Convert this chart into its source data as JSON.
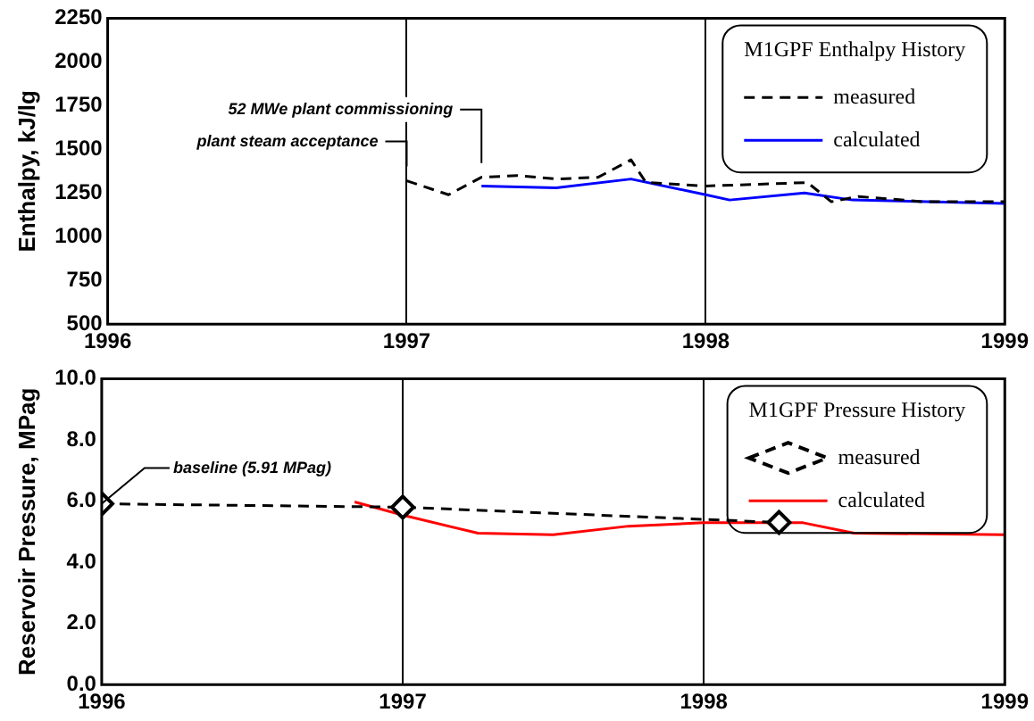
{
  "chart_data": [
    {
      "type": "line",
      "ylabel": "Enthalpy, kJ/lg",
      "legend_title": "M1GPF Enthalpy History",
      "legend": "top right",
      "grid": "x",
      "xlim": [
        1996,
        1999
      ],
      "xticks": [
        1996,
        1997,
        1998,
        1999
      ],
      "ylim": [
        500,
        2250
      ],
      "yticks": [
        500,
        750,
        1000,
        1250,
        1500,
        1750,
        2000,
        2250
      ],
      "series": [
        {
          "name": "measured",
          "color": "#000000",
          "line_style": "dashed",
          "marker": "none",
          "x": [
            1997.0,
            1997.14,
            1997.25,
            1997.37,
            1997.5,
            1997.64,
            1997.75,
            1997.8,
            1998.0,
            1998.18,
            1998.34,
            1998.42,
            1998.51,
            1998.73,
            1999.0
          ],
          "values": [
            1320,
            1240,
            1340,
            1350,
            1330,
            1340,
            1440,
            1310,
            1290,
            1300,
            1310,
            1200,
            1230,
            1200,
            1200
          ]
        },
        {
          "name": "calculated",
          "color": "#0000ff",
          "line_style": "solid",
          "marker": "none",
          "x": [
            1997.25,
            1997.5,
            1997.75,
            1998.0,
            1998.08,
            1998.33,
            1998.49,
            1999.0
          ],
          "values": [
            1290,
            1280,
            1330,
            1240,
            1210,
            1250,
            1210,
            1190
          ]
        }
      ],
      "annotations": [
        {
          "text": "52 MWe plant commissioning",
          "x": 1997.25,
          "y": 1340
        },
        {
          "text": "plant steam acceptance",
          "x": 1997.0,
          "y": 1320
        }
      ]
    },
    {
      "type": "line",
      "ylabel": "Reservoir Pressure, MPag",
      "legend_title": "M1GPF Pressure History",
      "legend": "top right",
      "grid": "x",
      "xlim": [
        1996,
        1999
      ],
      "xticks": [
        1996,
        1997,
        1998,
        1999
      ],
      "ylim": [
        0,
        10
      ],
      "yticks": [
        {
          "value": 0,
          "label": "0.0"
        },
        {
          "value": 2,
          "label": "2.0"
        },
        {
          "value": 4,
          "label": "4.0"
        },
        {
          "value": 6,
          "label": "6.0"
        },
        {
          "value": 8,
          "label": "8.0"
        },
        {
          "value": 10,
          "label": "10.0"
        }
      ],
      "series": [
        {
          "name": "measured",
          "color": "#000000",
          "line_style": "dashed",
          "marker": "diamond",
          "x": [
            1996.0,
            1997.0,
            1998.25
          ],
          "values": [
            5.91,
            5.8,
            5.3
          ]
        },
        {
          "name": "calculated",
          "color": "#ff0000",
          "line_style": "solid",
          "marker": "none",
          "x": [
            1996.84,
            1997.0,
            1997.25,
            1997.5,
            1997.75,
            1998.0,
            1998.33,
            1998.5,
            1999.0
          ],
          "values": [
            5.97,
            5.54,
            4.95,
            4.9,
            5.18,
            5.29,
            5.29,
            4.95,
            4.9
          ]
        }
      ],
      "annotations": [
        {
          "text": "baseline (5.91 MPag)",
          "x": 1996,
          "y": 5.91
        }
      ]
    }
  ]
}
